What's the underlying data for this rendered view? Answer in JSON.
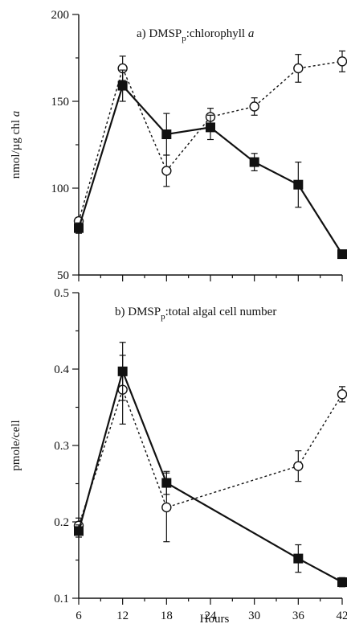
{
  "chart_data": [
    {
      "type": "line",
      "title": "a) DMSP",
      "title_sub": "p",
      "title_rest": ":chlorophyll ",
      "title_italic": "a",
      "ylabel": "nmol/µg chl ",
      "ylabel_italic": "a",
      "xlabel": "",
      "ylim": [
        50,
        200
      ],
      "yticks": [
        50,
        100,
        150,
        200
      ],
      "xlim": [
        6,
        42
      ],
      "xticks": [
        6,
        12,
        18,
        24,
        30,
        36,
        42
      ],
      "x": [
        6,
        12,
        18,
        24,
        30,
        36,
        42
      ],
      "series": [
        {
          "style": "solid-square",
          "values": [
            77,
            159,
            131,
            135,
            115,
            102,
            62
          ],
          "errors": [
            3,
            9,
            12,
            7,
            5,
            13,
            2
          ]
        },
        {
          "style": "dotted-circle",
          "values": [
            81,
            169,
            110,
            141,
            147,
            169,
            173
          ],
          "errors": [
            2,
            7,
            9,
            5,
            5,
            8,
            6
          ]
        }
      ]
    },
    {
      "type": "line",
      "title": "b) DMSP",
      "title_sub": "p",
      "title_rest": ":total algal cell number",
      "title_italic": "",
      "ylabel": "pmole/cell",
      "ylabel_italic": "",
      "xlabel": "Hours",
      "ylim": [
        0.1,
        0.5
      ],
      "yticks": [
        0.1,
        0.2,
        0.3,
        0.4,
        0.5
      ],
      "xlim": [
        6,
        42
      ],
      "xticks": [
        6,
        12,
        18,
        24,
        30,
        36,
        42
      ],
      "x": [
        6,
        12,
        18,
        24,
        30,
        36,
        42
      ],
      "series": [
        {
          "style": "solid-square",
          "values": [
            0.188,
            0.397,
            0.251,
            null,
            null,
            0.152,
            0.121
          ],
          "errors": [
            0.008,
            0.038,
            0.015,
            null,
            null,
            0.018,
            0.006
          ]
        },
        {
          "style": "dotted-circle",
          "values": [
            0.195,
            0.373,
            0.219,
            null,
            null,
            0.273,
            0.367
          ],
          "errors": [
            0.01,
            0.045,
            0.045,
            null,
            null,
            0.02,
            0.01
          ]
        }
      ]
    }
  ]
}
